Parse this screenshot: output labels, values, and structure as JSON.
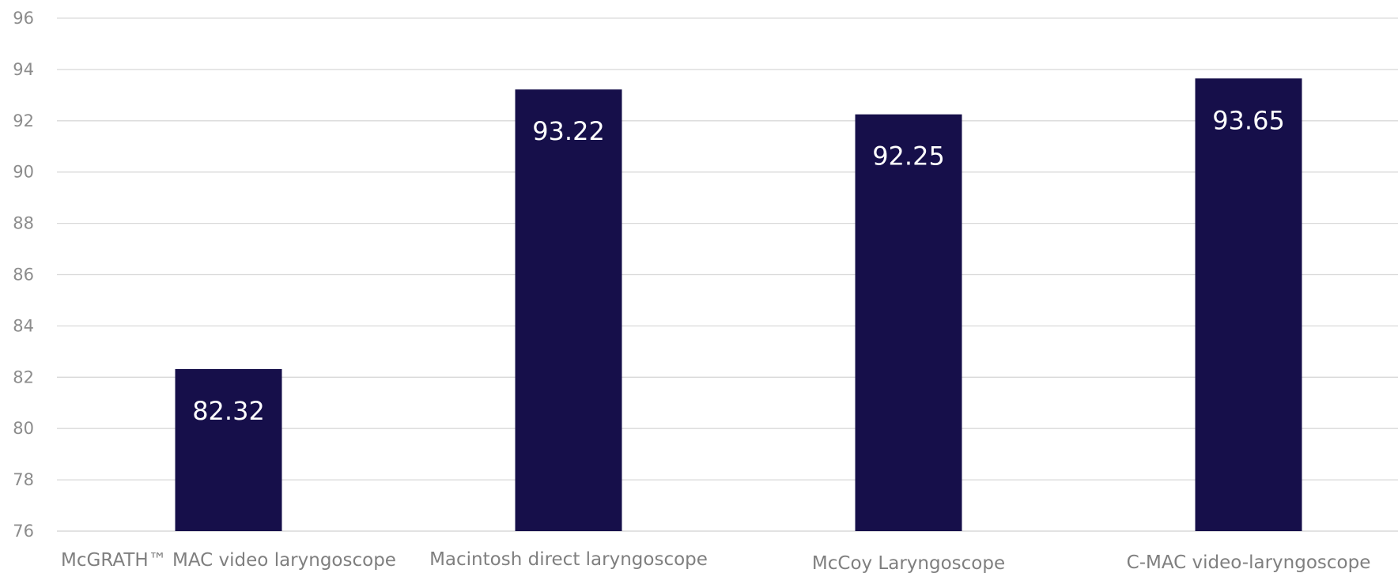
{
  "chart_data": {
    "type": "bar",
    "title": "",
    "xlabel": "",
    "ylabel": "",
    "categories": [
      "McGRATH™ MAC video laryngoscope",
      "Macintosh direct laryngoscope",
      "McCoy Laryngoscope",
      "C-MAC video-laryngoscope"
    ],
    "values": [
      82.32,
      93.22,
      92.25,
      93.65
    ],
    "data_labels": [
      "82.32",
      "93.22",
      "92.25",
      "93.65"
    ],
    "ylim": [
      76,
      96
    ],
    "yticks": [
      76,
      78,
      80,
      82,
      84,
      86,
      88,
      90,
      92,
      94,
      96
    ],
    "grid": true,
    "legend": "none",
    "colors": {
      "bar": "#160f4a",
      "grid": "#d9d9d9",
      "tick_text": "#8c8c8c",
      "category_text": "#7f7f7f",
      "bar_label_text": "#ffffff"
    }
  }
}
